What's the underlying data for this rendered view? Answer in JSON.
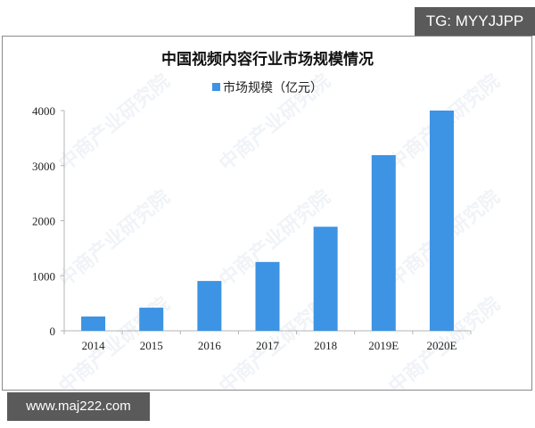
{
  "badges": {
    "top_right": "TG: MYYJJPP",
    "bottom_left": "www.maj222.com"
  },
  "watermark": "中商产业研究院",
  "chart_data": {
    "type": "bar",
    "title": "中国视频内容行业市场规模情况",
    "legend": [
      {
        "name": "市场规模（亿元）",
        "color": "#3d93e4"
      }
    ],
    "legend_position": "top",
    "categories": [
      "2014",
      "2015",
      "2016",
      "2017",
      "2018",
      "2019E",
      "2020E"
    ],
    "series": [
      {
        "name": "市场规模（亿元）",
        "values": [
          260,
          420,
          905,
          1250,
          1890,
          3190,
          4000
        ]
      }
    ],
    "xlabel": "",
    "ylabel": "",
    "ylim": [
      0,
      4000
    ],
    "yticks": [
      "0",
      "1000",
      "2000",
      "3000",
      "4000"
    ],
    "grid": false
  }
}
